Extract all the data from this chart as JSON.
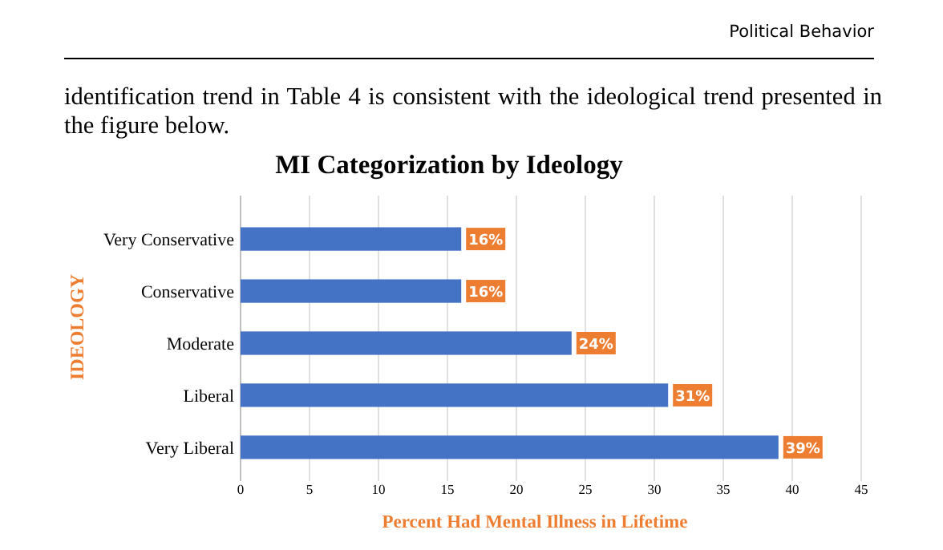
{
  "chart_data": {
    "type": "bar",
    "orientation": "horizontal",
    "title": "MI Categorization by Ideology",
    "xlabel": "Percent Had Mental Illness in Lifetime",
    "ylabel": "IDEOLOGY",
    "categories": [
      "Very Conservative",
      "Conservative",
      "Moderate",
      "Liberal",
      "Very Liberal"
    ],
    "values": [
      16,
      16,
      24,
      31,
      39
    ],
    "color": "#4472c4",
    "value_labels": [
      "16%",
      "16%",
      "24%",
      "31%",
      "39%"
    ],
    "xlim": [
      0,
      45
    ],
    "xticks": [
      0,
      5,
      10,
      15,
      20,
      25,
      30,
      35,
      40,
      45
    ],
    "grid": "x",
    "annotations": [
      "Political Behavior",
      "identification trend in Table 4 is consistent with the ideological trend presented in the figure below."
    ]
  }
}
